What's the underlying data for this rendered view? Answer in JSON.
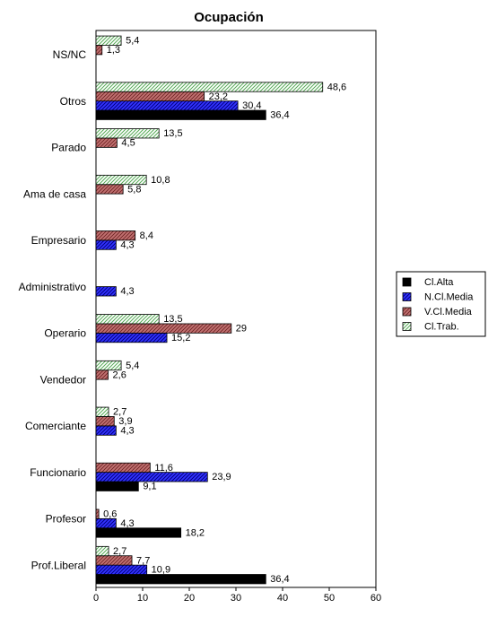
{
  "chart_data": {
    "type": "bar",
    "orientation": "horizontal",
    "title": "Ocupación",
    "xlabel": "",
    "ylabel": "",
    "xlim": [
      0,
      60
    ],
    "xticks": [
      0,
      10,
      20,
      30,
      40,
      50,
      60
    ],
    "grid": false,
    "legend_position": "right",
    "categories": [
      "NS/NC",
      "Otros",
      "Parado",
      "Ama de casa",
      "Empresario",
      "Administrativo",
      "Operario",
      "Vendedor",
      "Comerciante",
      "Funcionario",
      "Profesor",
      "Prof.Liberal"
    ],
    "series": [
      {
        "name": "Cl.Alta",
        "color": "#000000",
        "pattern": "solid",
        "values": [
          null,
          36.4,
          null,
          null,
          null,
          null,
          null,
          null,
          null,
          9.1,
          18.2,
          36.4
        ],
        "labels": [
          "",
          "36,4",
          "",
          "",
          "",
          "",
          "",
          "",
          "",
          "9,1",
          "18,2",
          "36,4"
        ]
      },
      {
        "name": "N.Cl.Media",
        "color": "#3333ff",
        "pattern": "hatch-blue",
        "values": [
          null,
          30.4,
          null,
          null,
          4.3,
          4.3,
          15.2,
          null,
          4.3,
          23.9,
          4.3,
          10.9
        ],
        "labels": [
          "",
          "30,4",
          "",
          "",
          "4,3",
          "4,3",
          "15,2",
          "",
          "4,3",
          "23,9",
          "4,3",
          "10,9"
        ]
      },
      {
        "name": "V.Cl.Media",
        "color": "#b06060",
        "pattern": "hatch-red",
        "values": [
          1.3,
          23.2,
          4.5,
          5.8,
          8.4,
          null,
          29,
          2.6,
          3.9,
          11.6,
          0.6,
          7.7
        ],
        "labels": [
          "1,3",
          "23,2",
          "4,5",
          "5,8",
          "8,4",
          "",
          "29",
          "2,6",
          "3,9",
          "11,6",
          "0,6",
          "7,7"
        ]
      },
      {
        "name": "Cl.Trab.",
        "color": "#99cc99",
        "pattern": "hatch-green",
        "values": [
          5.4,
          48.6,
          13.5,
          10.8,
          null,
          null,
          13.5,
          5.4,
          2.7,
          null,
          null,
          2.7
        ],
        "labels": [
          "5,4",
          "48,6",
          "13,5",
          "10,8",
          "",
          "",
          "13,5",
          "5,4",
          "2,7",
          "",
          "",
          "2,7"
        ]
      }
    ]
  }
}
